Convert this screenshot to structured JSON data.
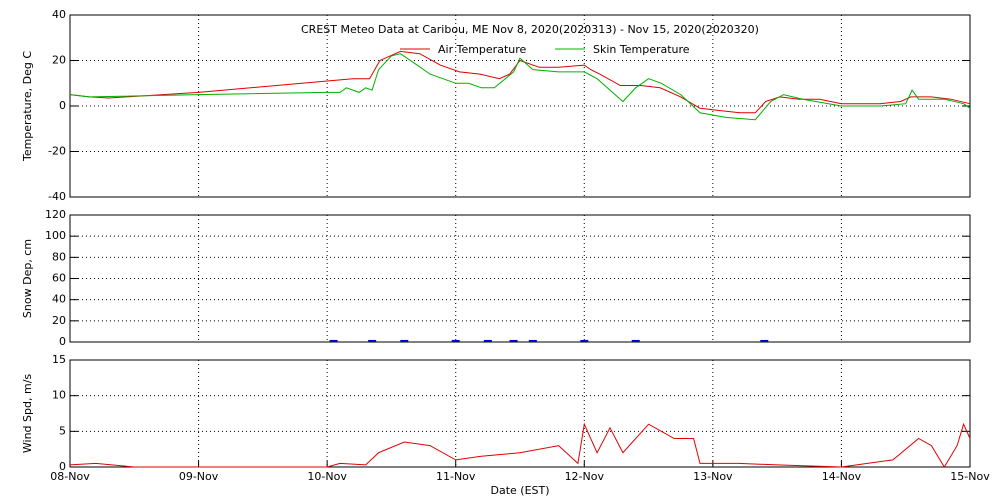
{
  "chart_data": [
    {
      "type": "line",
      "title": "CREST Meteo Data at Caribou, ME   Nov  8, 2020(2020313) - Nov 15, 2020(2020320)",
      "ylabel": "Temperature, Deg C",
      "xlim": [
        0,
        7
      ],
      "ylim": [
        -40,
        40
      ],
      "yticks": [
        -40,
        -20,
        0,
        20,
        40
      ],
      "grid": true,
      "series": [
        {
          "name": "Air Temperature",
          "color": "#e00000",
          "x": [
            0,
            0.15,
            0.3,
            1,
            2,
            2.2,
            2.33,
            2.41,
            2.57,
            2.72,
            2.88,
            3.03,
            3.19,
            3.34,
            3.42,
            3.5,
            3.65,
            3.8,
            4.0,
            4.05,
            4.12,
            4.28,
            4.44,
            4.59,
            4.75,
            4.9,
            5.05,
            5.21,
            5.33,
            5.41,
            5.52,
            5.67,
            5.83,
            6.0,
            6.15,
            6.3,
            6.46,
            6.54,
            6.7,
            6.85,
            7
          ],
          "values": [
            5,
            4,
            3.5,
            6,
            11,
            12,
            12,
            20,
            24,
            23,
            18,
            15,
            14,
            12,
            14,
            20,
            17,
            17,
            18,
            16,
            14,
            9,
            9,
            8,
            4,
            -1,
            -2,
            -3,
            -3,
            2,
            4,
            3,
            3,
            1,
            1,
            1,
            2,
            4,
            4,
            3,
            1
          ]
        },
        {
          "name": "Skin Temperature",
          "color": "#00b000",
          "x": [
            0,
            0.15,
            1,
            2,
            2.1,
            2.15,
            2.25,
            2.3,
            2.35,
            2.4,
            2.5,
            2.57,
            2.7,
            2.8,
            2.9,
            3.0,
            3.1,
            3.2,
            3.3,
            3.45,
            3.5,
            3.6,
            3.8,
            4.0,
            4.1,
            4.2,
            4.3,
            4.4,
            4.5,
            4.6,
            4.75,
            4.9,
            5.1,
            5.33,
            5.45,
            5.55,
            5.7,
            6.0,
            6.3,
            6.5,
            6.55,
            6.6,
            6.8,
            6.95,
            7
          ],
          "values": [
            5,
            4,
            5,
            6,
            6,
            8,
            6,
            8,
            7,
            16,
            22,
            23,
            18,
            14,
            12,
            10,
            10,
            8,
            8,
            15,
            21,
            16,
            15,
            15,
            12,
            7,
            2,
            8,
            12,
            10,
            5,
            -3,
            -5,
            -6,
            2,
            5,
            3,
            0,
            0,
            1,
            7,
            3,
            3,
            1,
            -1
          ]
        }
      ]
    },
    {
      "type": "scatter",
      "ylabel": "Snow Dep, cm",
      "xlim": [
        0,
        7
      ],
      "ylim": [
        0,
        120
      ],
      "yticks": [
        0,
        20,
        40,
        60,
        80,
        100,
        120
      ],
      "grid": true,
      "series": [
        {
          "color": "#0000e0",
          "x": [
            2.05,
            2.35,
            2.6,
            3.0,
            3.25,
            3.45,
            3.6,
            4.0,
            4.4,
            5.4
          ],
          "values": [
            1,
            1,
            1,
            1,
            1,
            1,
            1,
            1,
            1,
            1
          ]
        }
      ]
    },
    {
      "type": "line",
      "ylabel": "Wind Spd, m/s",
      "xlabel": "Date (EST)",
      "xlim": [
        0,
        7
      ],
      "ylim": [
        0,
        15
      ],
      "yticks": [
        0,
        5,
        10,
        15
      ],
      "grid": true,
      "xticks": [
        {
          "value": 0,
          "label": "08-Nov"
        },
        {
          "value": 1,
          "label": "09-Nov"
        },
        {
          "value": 2,
          "label": "10-Nov"
        },
        {
          "value": 3,
          "label": "11-Nov"
        },
        {
          "value": 4,
          "label": "12-Nov"
        },
        {
          "value": 5,
          "label": "13-Nov"
        },
        {
          "value": 6,
          "label": "14-Nov"
        },
        {
          "value": 7,
          "label": "15-Nov"
        }
      ],
      "series": [
        {
          "color": "#e00000",
          "x": [
            0,
            0.2,
            0.5,
            2,
            2.1,
            2.3,
            2.4,
            2.6,
            2.8,
            3.0,
            3.2,
            3.5,
            3.8,
            3.95,
            4.0,
            4.1,
            4.2,
            4.3,
            4.5,
            4.7,
            4.85,
            4.9,
            5.2,
            5.5,
            6.0,
            6.4,
            6.6,
            6.7,
            6.8,
            6.9,
            6.95,
            7
          ],
          "values": [
            0.3,
            0.5,
            0,
            0,
            0.5,
            0.3,
            2,
            3.5,
            3,
            1,
            1.5,
            2,
            3,
            0.5,
            6,
            2,
            5.5,
            2,
            6,
            4,
            4,
            0.5,
            0.5,
            0.3,
            0,
            1,
            4,
            3,
            0,
            3,
            6,
            4
          ]
        }
      ]
    }
  ]
}
